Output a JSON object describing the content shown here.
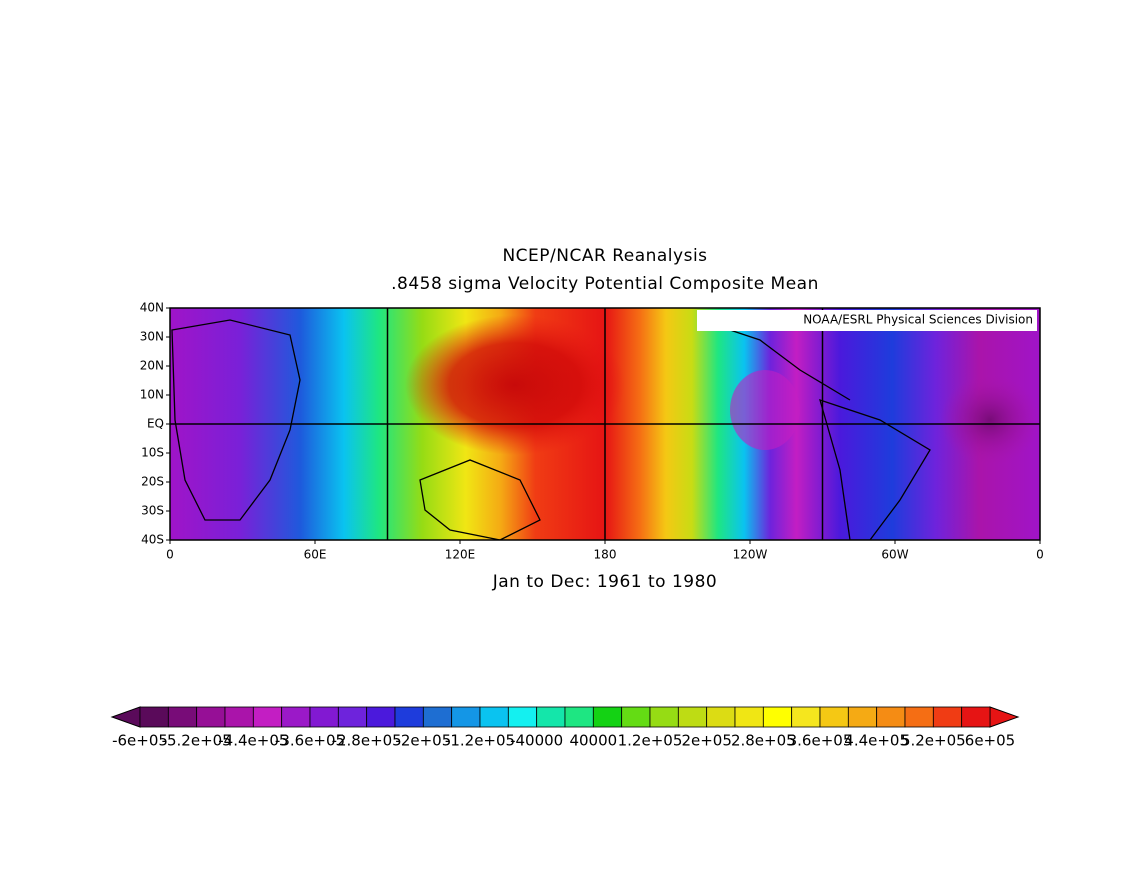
{
  "title": "NCEP/NCAR Reanalysis",
  "subtitle": ".8458 sigma Velocity Potential  Composite Mean",
  "annotation": "NOAA/ESRL Physical Sciences Division",
  "footer": "Jan to Dec: 1961 to 1980",
  "lat_labels": [
    "40N",
    "30N",
    "20N",
    "10N",
    "EQ",
    "10S",
    "20S",
    "30S",
    "40S"
  ],
  "lon_labels": [
    "0",
    "60E",
    "120E",
    "180",
    "120W",
    "60W",
    "0"
  ],
  "colorbar": {
    "labels": [
      "-6e+05",
      "-5.2e+05",
      "-4.4e+05",
      "-3.6e+05",
      "-2.8e+05",
      "-2e+05",
      "-1.2e+05",
      "-40000",
      "40000",
      "1.2e+05",
      "2e+05",
      "2.8e+05",
      "3.6e+05",
      "4.4e+05",
      "5.2e+05",
      "6e+05"
    ],
    "colors": [
      "#5a0a5a",
      "#780c78",
      "#960f96",
      "#aa14aa",
      "#c31ec3",
      "#9b19c8",
      "#8219d2",
      "#6e23dc",
      "#4b19dc",
      "#1e3cdc",
      "#1e6ed2",
      "#1496e6",
      "#0ac3f0",
      "#14f0f0",
      "#14e6aa",
      "#1ee682",
      "#14d214",
      "#64dc14",
      "#96dc14",
      "#bedc14",
      "#dcdc14",
      "#f0e614",
      "#ffff00",
      "#f5e61e",
      "#f5c814",
      "#f5aa14",
      "#f58c14",
      "#f56e14",
      "#f03c14",
      "#e61414"
    ]
  }
}
